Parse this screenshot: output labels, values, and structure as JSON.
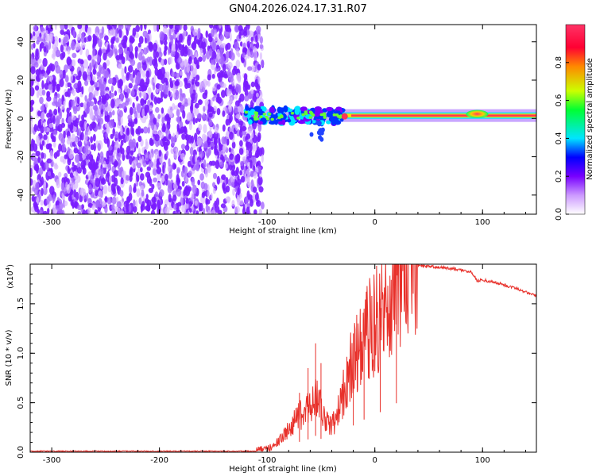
{
  "title": "GN04.2026.024.17.31.R07",
  "chart_data": [
    {
      "type": "heatmap",
      "name": "spectrogram",
      "xlabel": "Height of straight line (km)",
      "ylabel": "Frequency (Hz)",
      "xlim": [
        -320,
        150
      ],
      "ylim": [
        -50,
        49
      ],
      "xticks": [
        -300,
        -200,
        -100,
        0,
        100
      ],
      "xtick_labels": [
        "-300",
        "-200",
        "-100",
        "0",
        "100"
      ],
      "yticks": [
        -40,
        -20,
        0,
        20,
        40
      ],
      "ytick_labels": [
        "-40",
        "-20",
        "0",
        "20",
        "40"
      ],
      "noise_region_x": [
        -320,
        -110
      ],
      "signal_band": {
        "x_range": [
          -120,
          150
        ],
        "center_frequency_hz": 1.5,
        "scattered_segment_x": [
          -120,
          -30
        ],
        "coherent_segment_x": [
          -30,
          150
        ]
      },
      "colorbar": {
        "label": "Normalized spectral amplitude",
        "range": [
          0.0,
          1.0
        ],
        "ticks": [
          0.0,
          0.2,
          0.4,
          0.6,
          0.8
        ],
        "tick_labels": [
          "0.0",
          "0.2",
          "0.4",
          "0.6",
          "0.8"
        ],
        "colors": [
          "#ffffff",
          "#cc99ff",
          "#7700ff",
          "#0000ff",
          "#00e5ff",
          "#00ff33",
          "#ccff00",
          "#ff8800",
          "#ff0033",
          "#ff3366"
        ]
      }
    },
    {
      "type": "line",
      "name": "snr",
      "xlabel": "Height of straight line (km)",
      "ylabel": "SNR (10 * v/v)",
      "scale_label": "(x10",
      "scale_exponent": "4",
      "scale_close": ")",
      "xlim": [
        -320,
        150
      ],
      "ylim": [
        0,
        1.9
      ],
      "xticks": [
        -300,
        -200,
        -100,
        0,
        100
      ],
      "xtick_labels": [
        "-300",
        "-200",
        "-100",
        "0",
        "100"
      ],
      "yticks": [
        0,
        0.5,
        1.0,
        1.5
      ],
      "ytick_labels": [
        "0.0",
        "0.5",
        "1.0",
        "1.5"
      ],
      "color": "#e8302a",
      "series": [
        {
          "name": "SNR",
          "x": [
            -320,
            -110,
            -100,
            -90,
            -80,
            -70,
            -60,
            -55,
            -50,
            -45,
            -40,
            -35,
            -30,
            -25,
            -20,
            -15,
            -10,
            -5,
            0,
            5,
            10,
            15,
            20,
            25,
            30,
            35,
            40,
            45,
            60,
            75,
            90,
            95,
            100,
            110,
            120,
            130,
            140,
            150
          ],
          "y": [
            0.01,
            0.01,
            0.03,
            0.1,
            0.22,
            0.35,
            0.45,
            0.55,
            0.45,
            0.3,
            0.25,
            0.35,
            0.55,
            0.75,
            0.9,
            1.0,
            1.1,
            1.2,
            1.25,
            1.35,
            1.4,
            1.5,
            1.65,
            1.78,
            1.85,
            1.88,
            1.88,
            1.88,
            1.87,
            1.85,
            1.82,
            1.73,
            1.74,
            1.72,
            1.69,
            1.66,
            1.62,
            1.58
          ]
        }
      ],
      "spikes": [
        {
          "x": -70,
          "max": 0.6
        },
        {
          "x": -62,
          "max": 0.85
        },
        {
          "x": -55,
          "max": 1.1
        },
        {
          "x": -50,
          "max": 0.9
        },
        {
          "x": -20,
          "max": 1.2
        },
        {
          "x": -10,
          "max": 1.45
        },
        {
          "x": 5,
          "max": 1.55
        },
        {
          "x": 20,
          "max": 1.9
        }
      ]
    }
  ]
}
